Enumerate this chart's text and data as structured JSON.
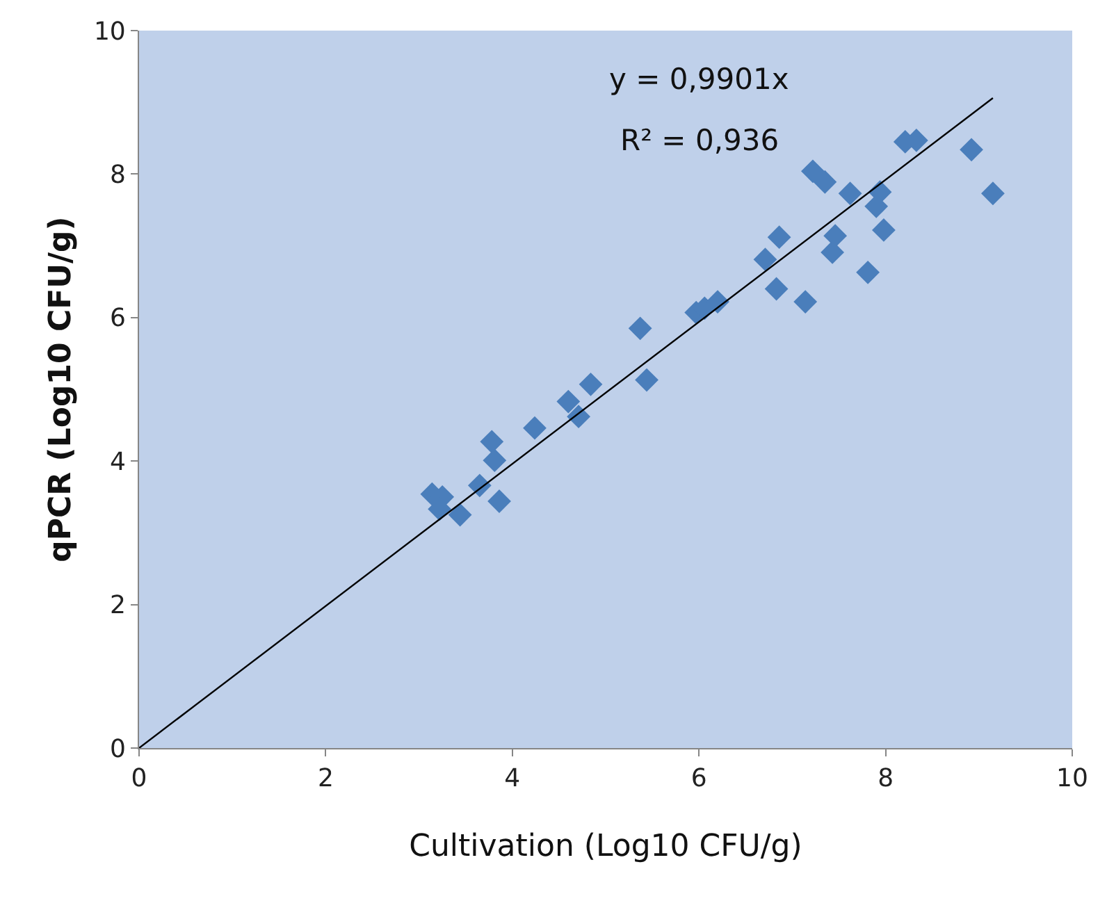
{
  "chart_data": {
    "type": "scatter",
    "xlabel": "Cultivation (Log10 CFU/g)",
    "ylabel": "qPCR (Log10 CFU/g)",
    "annotations": [
      "y = 0,9901x",
      "R² = 0,936"
    ],
    "series": [
      {
        "color": "#4a7ebb",
        "marker": "diamond",
        "x": [
          3.14,
          3.25,
          3.22,
          3.44,
          3.65,
          3.86,
          3.78,
          3.81,
          4.24,
          4.6,
          4.71,
          4.84,
          5.44,
          5.37,
          5.97,
          6.06,
          6.2,
          6.71,
          6.86,
          6.83,
          7.14,
          7.22,
          7.35,
          7.62,
          7.94,
          7.9,
          7.98,
          7.46,
          7.43,
          7.81,
          8.21,
          8.33,
          8.92,
          9.15
        ],
        "values": [
          3.54,
          3.5,
          3.33,
          3.25,
          3.66,
          3.44,
          4.27,
          4.01,
          4.46,
          4.83,
          4.62,
          5.07,
          5.13,
          5.85,
          6.07,
          6.13,
          6.22,
          6.81,
          7.12,
          6.4,
          6.22,
          8.04,
          7.89,
          7.73,
          7.75,
          7.55,
          7.22,
          7.14,
          6.91,
          6.63,
          8.45,
          8.47,
          8.34,
          7.73
        ]
      },
      {
        "type": "line",
        "color": "#000000",
        "marker": "none",
        "x": [
          0,
          9.15
        ],
        "values": [
          0,
          9.06
        ]
      }
    ],
    "xlim": [
      0,
      10
    ],
    "ylim": [
      0,
      10
    ],
    "xticks": [
      0,
      2,
      4,
      6,
      8,
      10
    ],
    "yticks": [
      0,
      2,
      4,
      6,
      8,
      10
    ],
    "grid": false
  }
}
